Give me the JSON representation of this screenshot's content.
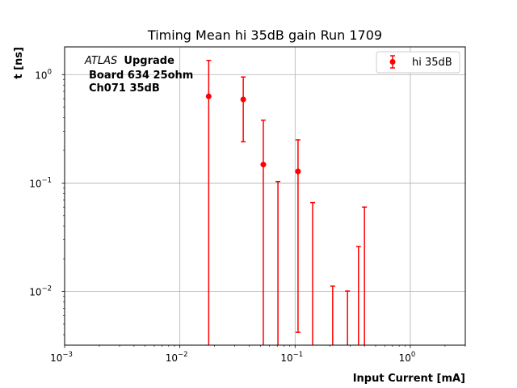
{
  "chart_data": {
    "type": "scatter",
    "title": "Timing Mean hi 35dB gain Run 1709",
    "xlabel": "Input Current [mA]",
    "ylabel": "t [ns]",
    "xscale": "log",
    "yscale": "log",
    "xlim": [
      0.001,
      3.0
    ],
    "ylim": [
      0.0032,
      1.8
    ],
    "grid": true,
    "legend_position": "top-right",
    "x_tick_labels": [
      "10^-3",
      "10^-2",
      "10^-1",
      "10^0"
    ],
    "y_tick_labels": [
      "10^-2",
      "10^-1",
      "10^0"
    ],
    "annotation": {
      "atlas": "ATLAS",
      "upgrade": "Upgrade",
      "line2": "Board 634 25ohm",
      "line3": "Ch071 35dB"
    },
    "color": "#ff0000",
    "series": [
      {
        "name": "hi 35dB",
        "points": [
          {
            "x": 0.0178,
            "y": 0.63,
            "err_low": 0.63,
            "err_high": 0.72
          },
          {
            "x": 0.0355,
            "y": 0.59,
            "err_low": 0.35,
            "err_high": 0.36
          },
          {
            "x": 0.053,
            "y": 0.148,
            "err_low": 0.148,
            "err_high": 0.232
          },
          {
            "x": 0.071,
            "y": 0.0,
            "err_low": 0.0,
            "err_high": 0.103
          },
          {
            "x": 0.106,
            "y": 0.128,
            "err_low": 0.1238,
            "err_high": 0.122
          },
          {
            "x": 0.142,
            "y": 0.0,
            "err_low": 0.0,
            "err_high": 0.066
          },
          {
            "x": 0.212,
            "y": 0.0,
            "err_low": 0.0,
            "err_high": 0.0112
          },
          {
            "x": 0.285,
            "y": 0.0,
            "err_low": 0.0,
            "err_high": 0.0101
          },
          {
            "x": 0.355,
            "y": 0.0,
            "err_low": 0.0,
            "err_high": 0.026
          },
          {
            "x": 0.4,
            "y": 0.0,
            "err_low": 0.0,
            "err_high": 0.06
          }
        ]
      }
    ]
  }
}
